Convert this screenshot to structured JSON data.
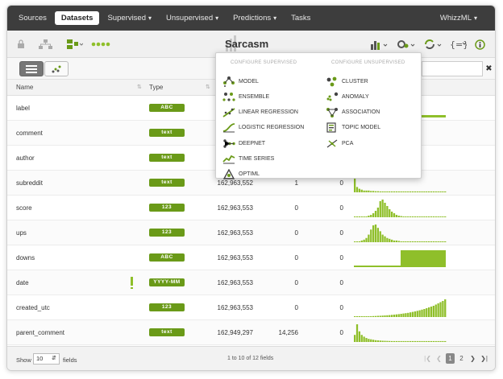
{
  "nav": {
    "items": [
      {
        "label": "Sources",
        "active": false,
        "caret": false
      },
      {
        "label": "Datasets",
        "active": true,
        "caret": false
      },
      {
        "label": "Supervised",
        "active": false,
        "caret": true
      },
      {
        "label": "Unsupervised",
        "active": false,
        "caret": true
      },
      {
        "label": "Predictions",
        "active": false,
        "caret": true
      },
      {
        "label": "Tasks",
        "active": false,
        "caret": false
      }
    ],
    "user": "WhizzML"
  },
  "dataset": {
    "title": "Sarcasm"
  },
  "table": {
    "headers": {
      "name": "Name",
      "type": "Type"
    },
    "rows": [
      {
        "name": "label",
        "type": "ABC",
        "count": "",
        "missing": "",
        "errors": "",
        "warn": false,
        "hist": "label"
      },
      {
        "name": "comment",
        "type": "text",
        "count": "",
        "missing": "",
        "errors": "",
        "warn": false,
        "hist": "none"
      },
      {
        "name": "author",
        "type": "text",
        "count": "",
        "missing": "",
        "errors": "",
        "warn": false,
        "hist": "none"
      },
      {
        "name": "subreddit",
        "type": "text",
        "count": "162,963,552",
        "missing": "1",
        "errors": "0",
        "warn": false,
        "hist": "decay"
      },
      {
        "name": "score",
        "type": "123",
        "count": "162,963,553",
        "missing": "0",
        "errors": "0",
        "warn": false,
        "hist": "peak"
      },
      {
        "name": "ups",
        "type": "123",
        "count": "162,963,553",
        "missing": "0",
        "errors": "0",
        "warn": false,
        "hist": "peak2"
      },
      {
        "name": "downs",
        "type": "ABC",
        "count": "162,963,553",
        "missing": "0",
        "errors": "0",
        "warn": false,
        "hist": "downs"
      },
      {
        "name": "date",
        "type": "YYYY-MM",
        "count": "162,963,553",
        "missing": "0",
        "errors": "0",
        "warn": true,
        "hist": "none"
      },
      {
        "name": "created_utc",
        "type": "123",
        "count": "162,963,553",
        "missing": "0",
        "errors": "0",
        "warn": false,
        "hist": "grow"
      },
      {
        "name": "parent_comment",
        "type": "text",
        "count": "162,949,297",
        "missing": "14,256",
        "errors": "0",
        "warn": false,
        "hist": "decay2"
      }
    ]
  },
  "footer": {
    "show": "Show",
    "page_size": "10",
    "fields": "fields",
    "range": "1 to 10 of 12 fields",
    "pages": [
      "1",
      "2"
    ]
  },
  "dropdown": {
    "supervised_head": "CONFIGURE SUPERVISED",
    "unsupervised_head": "CONFIGURE UNSUPERVISED",
    "supervised": [
      "MODEL",
      "ENSEMBLE",
      "LINEAR REGRESSION",
      "LOGISTIC REGRESSION",
      "DEEPNET",
      "TIME SERIES",
      "OPTIML"
    ],
    "unsupervised": [
      "CLUSTER",
      "ANOMALY",
      "ASSOCIATION",
      "TOPIC MODEL",
      "PCA"
    ]
  },
  "colors": {
    "accent": "#6a9a18",
    "bar": "#8fbf2a",
    "nav": "#3d3d3d"
  }
}
